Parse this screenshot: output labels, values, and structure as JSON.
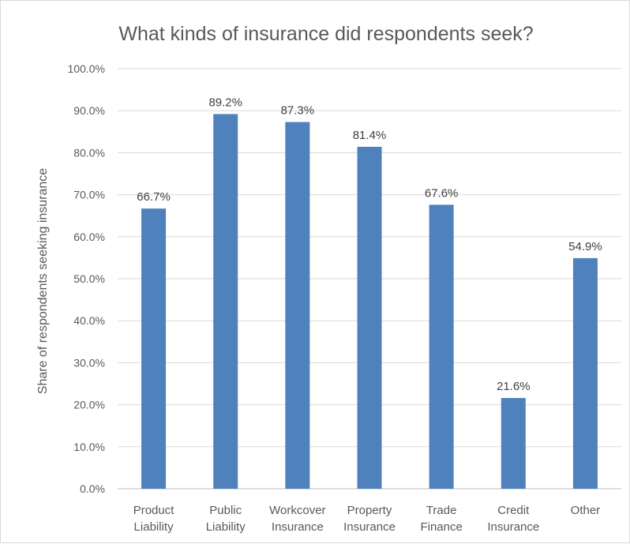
{
  "chart_data": {
    "type": "bar",
    "title": "What kinds of insurance did respondents seek?",
    "xlabel": "",
    "ylabel": "Share of respondents seeking insurance",
    "ylim": [
      0,
      100
    ],
    "yticks": [
      "0.0%",
      "10.0%",
      "20.0%",
      "30.0%",
      "40.0%",
      "50.0%",
      "60.0%",
      "70.0%",
      "80.0%",
      "90.0%",
      "100.0%"
    ],
    "grid": true,
    "legend": "none",
    "bar_color": "#4f81bd",
    "categories": [
      [
        "Product",
        "Liability"
      ],
      [
        "Public",
        "Liability"
      ],
      [
        "Workcover",
        "Insurance"
      ],
      [
        "Property",
        "Insurance"
      ],
      [
        "Trade",
        "Finance"
      ],
      [
        "Credit",
        "Insurance"
      ],
      [
        "Other"
      ]
    ],
    "values": [
      66.7,
      89.2,
      87.3,
      81.4,
      67.6,
      21.6,
      54.9
    ],
    "data_labels": [
      "66.7%",
      "89.2%",
      "87.3%",
      "81.4%",
      "67.6%",
      "21.6%",
      "54.9%"
    ]
  }
}
